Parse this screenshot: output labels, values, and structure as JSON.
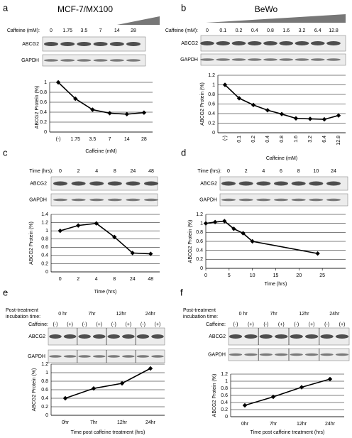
{
  "chart_data": [
    {
      "type": "line",
      "panel": "a",
      "title": "MCF-7/MX100",
      "treatment_label": "Caffeine (mM):",
      "treatment_values": [
        "0",
        "1.75",
        "3.5",
        "7",
        "14",
        "28"
      ],
      "blot_labels": [
        "ABCG2",
        "GAPDH"
      ],
      "categories": [
        "(-)",
        "1.75",
        "3.5",
        "7",
        "14",
        "28"
      ],
      "values": [
        1,
        0.67,
        0.45,
        0.38,
        0.36,
        0.39
      ],
      "ylim": [
        0,
        1
      ],
      "yticks": [
        0,
        0.2,
        0.4,
        0.6,
        0.8,
        1
      ],
      "ylabel": "ABCG2 Protein (%)",
      "xlabel": "Caffeine (mM)",
      "grid": true,
      "color": "#000000"
    },
    {
      "type": "line",
      "panel": "b",
      "title": "BeWo",
      "treatment_label": "Caffeine (mM):",
      "treatment_values": [
        "0",
        "0.1",
        "0.2",
        "0.4",
        "0.8",
        "1.6",
        "3.2",
        "6.4",
        "12.8"
      ],
      "blot_labels": [
        "ABCG2",
        "GAPDH"
      ],
      "categories": [
        "(-)",
        "0.1",
        "0.2",
        "0.4",
        "0.8",
        "1.6",
        "3.2",
        "6.4",
        "12.8"
      ],
      "values": [
        1,
        0.72,
        0.58,
        0.47,
        0.39,
        0.3,
        0.29,
        0.28,
        0.36
      ],
      "ylim": [
        0,
        1.2
      ],
      "yticks": [
        0,
        0.2,
        0.4,
        0.6,
        0.8,
        1,
        1.2
      ],
      "ylabel": "ABCG2 Protein (%)",
      "xlabel": "Caffeine (mM)",
      "grid": true,
      "color": "#000000"
    },
    {
      "type": "line",
      "panel": "c",
      "treatment_label": "Time (hrs):",
      "treatment_values": [
        "0",
        "2",
        "4",
        "8",
        "24",
        "48"
      ],
      "blot_labels": [
        "ABCG2",
        "GAPDH"
      ],
      "categories": [
        "0",
        "2",
        "4",
        "8",
        "24",
        "48"
      ],
      "values": [
        1,
        1.13,
        1.18,
        0.85,
        0.46,
        0.44
      ],
      "ylim": [
        0,
        1.4
      ],
      "yticks": [
        0,
        0.2,
        0.4,
        0.6,
        0.8,
        1,
        1.2,
        1.4
      ],
      "ylabel": "ABCG2 Protein (%)",
      "xlabel": "Time (hrs)",
      "grid": true,
      "color": "#000000"
    },
    {
      "type": "scatter-line",
      "panel": "d",
      "treatment_label": "Time (hrs):",
      "treatment_values": [
        "0",
        "2",
        "4",
        "6",
        "8",
        "10",
        "24"
      ],
      "blot_labels": [
        "ABCG2",
        "GAPDH"
      ],
      "x": [
        0,
        2,
        4,
        6,
        8,
        10,
        24
      ],
      "values": [
        1,
        1.03,
        1.05,
        0.88,
        0.78,
        0.6,
        0.33
      ],
      "xlim": [
        0,
        30
      ],
      "xticks": [
        0,
        5,
        10,
        15,
        20,
        25
      ],
      "ylim": [
        0,
        1.2
      ],
      "yticks": [
        0,
        0.2,
        0.4,
        0.6,
        0.8,
        1,
        1.2
      ],
      "ylabel": "ABCG2 Protein (%)",
      "xlabel": "Time (hrs)",
      "grid": true,
      "color": "#000000"
    },
    {
      "type": "line",
      "panel": "e",
      "incubation_label": [
        "Post-treatment",
        "incubation time:"
      ],
      "incubation_times": [
        "0 hr",
        "7hr",
        "12hr",
        "24hr"
      ],
      "treatment_label": "Caffeine:",
      "treatment_values": [
        "(-)",
        "(+)",
        "(-)",
        "(+)",
        "(-)",
        "(+)",
        "(-)",
        "(+)"
      ],
      "blot_labels": [
        "ABCG2",
        "GAPDH"
      ],
      "categories": [
        "0hr",
        "7hr",
        "12hr",
        "24hr"
      ],
      "values": [
        0.4,
        0.63,
        0.75,
        1.1
      ],
      "ylim": [
        0,
        1.2
      ],
      "yticks": [
        0,
        0.2,
        0.4,
        0.6,
        0.8,
        1,
        1.2
      ],
      "ylabel": "ABCG2 Protein (%)",
      "xlabel": "Time post caffeine treatment (hrs)",
      "grid": true,
      "color": "#000000"
    },
    {
      "type": "line",
      "panel": "f",
      "incubation_label": [
        "Post-treatment",
        "incubation time:"
      ],
      "incubation_times": [
        "0 hr",
        "7hr",
        "12hr",
        "24hr"
      ],
      "treatment_label": "Caffeine:",
      "treatment_values": [
        "(-)",
        "(+)",
        "(-)",
        "(+)",
        "(-)",
        "(+)",
        "(-)",
        "(+)"
      ],
      "blot_labels": [
        "ABCG2",
        "GAPDH"
      ],
      "categories": [
        "0hr",
        "7hr",
        "12hr",
        "24hr"
      ],
      "values": [
        0.32,
        0.56,
        0.83,
        1.06
      ],
      "ylim": [
        0,
        1.2
      ],
      "yticks": [
        0,
        0.2,
        0.4,
        0.6,
        0.8,
        1,
        1.2
      ],
      "ylabel": "ABCG2 Protein (%)",
      "xlabel": "Time post caffeine treatment (hrs)",
      "grid": true,
      "color": "#000000"
    }
  ]
}
